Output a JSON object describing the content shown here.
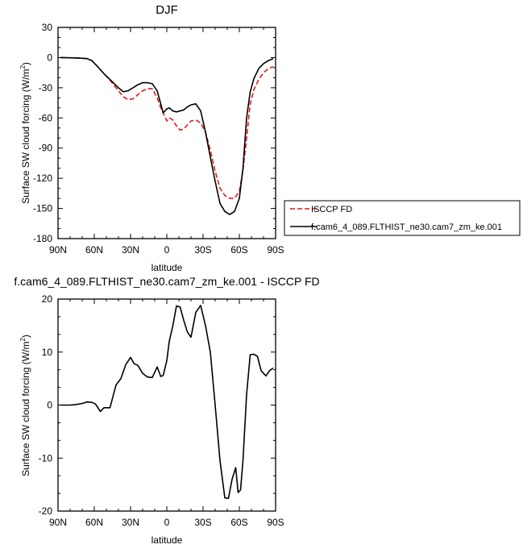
{
  "chart_data": [
    {
      "type": "line",
      "title": "DJF",
      "xlabel": "latitude",
      "ylabel": "Surface SW cloud forcing (W/m",
      "ylabel_sup": "2",
      "ylabel_close": ")",
      "xlim": [
        -90,
        90
      ],
      "ylim": [
        -180,
        30
      ],
      "x_ticks": [
        {
          "value": -90,
          "label": "90N"
        },
        {
          "value": -60,
          "label": "60N"
        },
        {
          "value": -30,
          "label": "30N"
        },
        {
          "value": 0,
          "label": "0"
        },
        {
          "value": 30,
          "label": "30S"
        },
        {
          "value": 60,
          "label": "60S"
        },
        {
          "value": 90,
          "label": "90S"
        }
      ],
      "y_ticks": [
        {
          "value": 30,
          "label": "30"
        },
        {
          "value": 0,
          "label": "0"
        },
        {
          "value": -30,
          "label": "-30"
        },
        {
          "value": -60,
          "label": "-60"
        },
        {
          "value": -90,
          "label": "-90"
        },
        {
          "value": -120,
          "label": "-120"
        },
        {
          "value": -150,
          "label": "-150"
        },
        {
          "value": -180,
          "label": "-180"
        }
      ],
      "grid": false,
      "legend_position": "right",
      "series": [
        {
          "name": "ISCCP FD",
          "color": "#e41a1c",
          "dash": "dashed",
          "x": [
            -88,
            -80,
            -72,
            -66,
            -62,
            -58,
            -52,
            -46,
            -40,
            -36,
            -32,
            -28,
            -24,
            -20,
            -16,
            -12,
            -8,
            -5,
            -3,
            0,
            2,
            5,
            8,
            11,
            14,
            17,
            20,
            24,
            28,
            32,
            36,
            40,
            44,
            48,
            52,
            56,
            60,
            63,
            66,
            69,
            72,
            76,
            80,
            84,
            88
          ],
          "y": [
            0,
            -0.2,
            -0.5,
            -1,
            -3,
            -8,
            -16,
            -24,
            -33,
            -39,
            -42,
            -41,
            -37,
            -33,
            -31,
            -31,
            -40,
            -50,
            -55,
            -63,
            -60,
            -62,
            -68,
            -72,
            -71,
            -67,
            -63,
            -62,
            -65,
            -74,
            -92,
            -113,
            -130,
            -137,
            -140,
            -140,
            -133,
            -112,
            -80,
            -46,
            -32,
            -22,
            -15,
            -11,
            -9
          ]
        },
        {
          "name": "f.cam6_4_089.FLTHIST_ne30.cam7_zm_ke.001",
          "color": "#000000",
          "dash": "solid",
          "x": [
            -88,
            -80,
            -72,
            -66,
            -62,
            -58,
            -52,
            -46,
            -40,
            -36,
            -32,
            -28,
            -24,
            -20,
            -16,
            -12,
            -8,
            -5,
            -3,
            0,
            2,
            5,
            8,
            11,
            14,
            17,
            20,
            24,
            28,
            32,
            36,
            40,
            44,
            48,
            52,
            56,
            60,
            63,
            66,
            69,
            72,
            76,
            80,
            84,
            88
          ],
          "y": [
            0,
            -0.2,
            -0.5,
            -1,
            -3,
            -8,
            -16,
            -23,
            -30,
            -34,
            -33,
            -30,
            -27,
            -25,
            -25,
            -26,
            -33,
            -46,
            -55,
            -51,
            -50,
            -53,
            -54,
            -53,
            -52,
            -49,
            -47,
            -46,
            -53,
            -74,
            -99,
            -123,
            -145,
            -153,
            -156,
            -153,
            -140,
            -110,
            -60,
            -34,
            -21,
            -11,
            -6,
            -3,
            -1
          ]
        }
      ]
    },
    {
      "type": "line",
      "title": "f.cam6_4_089.FLTHIST_ne30.cam7_zm_ke.001 - ISCCP FD",
      "xlabel": "latitude",
      "ylabel": "Surface SW cloud forcing (W/m",
      "ylabel_sup": "2",
      "ylabel_close": ")",
      "xlim": [
        -90,
        90
      ],
      "ylim": [
        -20,
        20
      ],
      "x_ticks": [
        {
          "value": -90,
          "label": "90N"
        },
        {
          "value": -60,
          "label": "60N"
        },
        {
          "value": -30,
          "label": "30N"
        },
        {
          "value": 0,
          "label": "0"
        },
        {
          "value": 30,
          "label": "30S"
        },
        {
          "value": 60,
          "label": "60S"
        },
        {
          "value": 90,
          "label": "90S"
        }
      ],
      "y_ticks": [
        {
          "value": 20,
          "label": "20"
        },
        {
          "value": 10,
          "label": "10"
        },
        {
          "value": 0,
          "label": "0"
        },
        {
          "value": -10,
          "label": "-10"
        },
        {
          "value": -20,
          "label": "-20"
        }
      ],
      "grid": false,
      "series": [
        {
          "color": "#000000",
          "dash": "solid",
          "x": [
            -88,
            -80,
            -75,
            -70,
            -66,
            -62,
            -59,
            -55,
            -52,
            -47,
            -42,
            -38,
            -34,
            -30,
            -27,
            -24,
            -20,
            -16,
            -12,
            -8,
            -5,
            -3,
            0,
            2,
            5,
            8,
            11,
            14,
            17,
            20,
            24,
            28,
            32,
            36,
            40,
            44,
            48,
            51,
            54,
            57,
            59,
            61,
            63,
            66,
            69,
            72,
            75,
            78,
            82,
            85,
            88
          ],
          "y": [
            0,
            0,
            0.1,
            0.3,
            0.6,
            0.5,
            0.2,
            -1.2,
            -0.5,
            -0.5,
            3.8,
            5,
            7.6,
            9,
            7.8,
            7.5,
            6,
            5.3,
            5.2,
            7.2,
            5.4,
            5.6,
            8.4,
            12,
            15,
            18.7,
            18.5,
            16,
            13.8,
            12.8,
            17.5,
            18.8,
            15,
            10,
            0,
            -10.5,
            -17.5,
            -17.6,
            -14,
            -11.8,
            -16.5,
            -16,
            -10.5,
            2,
            9.5,
            9.6,
            9.2,
            6.5,
            5.5,
            6.5,
            7
          ]
        }
      ]
    }
  ]
}
